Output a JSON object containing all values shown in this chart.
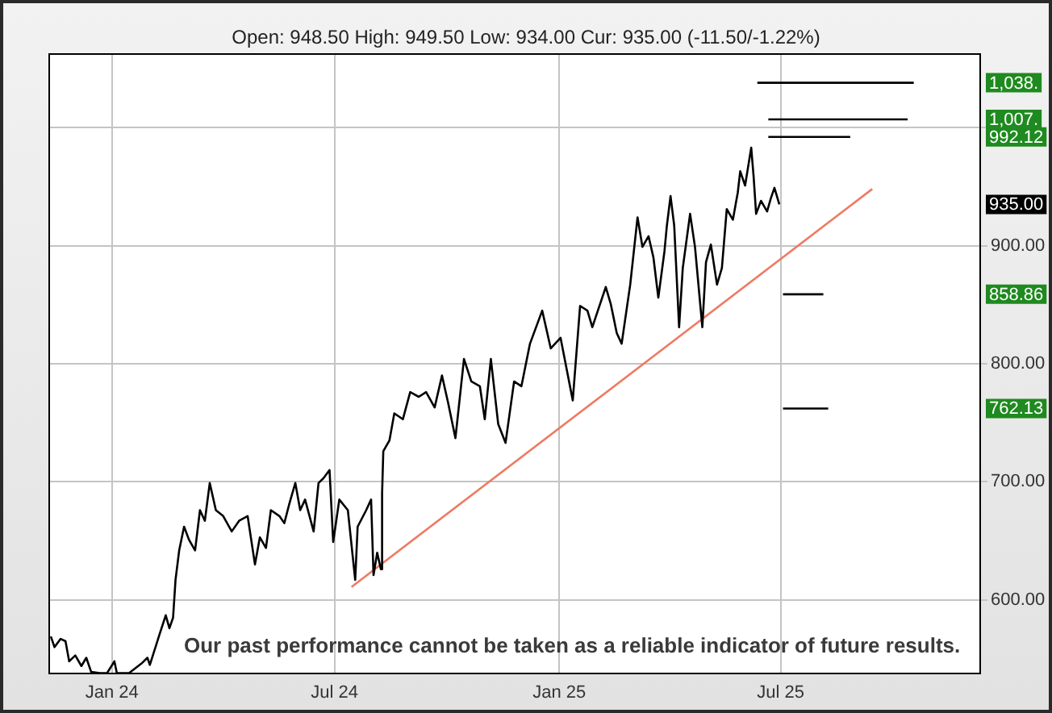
{
  "chart_data": {
    "type": "line",
    "subtitle": "Open: 948.50 High: 949.50 Low: 934.00 Cur: 935.00 (-11.50/-1.22%)",
    "series": [
      {
        "color": "#000000",
        "x": [
          "2023-11-12",
          "2023-11-15",
          "2023-11-20",
          "2023-11-24",
          "2023-11-27",
          "2023-12-02",
          "2023-12-07",
          "2023-12-11",
          "2023-12-15",
          "2023-12-22",
          "2023-12-28",
          "2024-01-03",
          "2024-01-05",
          "2024-01-15",
          "2024-01-25",
          "2024-01-30",
          "2024-02-01",
          "2024-02-09",
          "2024-02-14",
          "2024-02-17",
          "2024-02-20",
          "2024-02-22",
          "2024-02-25",
          "2024-02-29",
          "2024-03-04",
          "2024-03-09",
          "2024-03-13",
          "2024-03-17",
          "2024-03-21",
          "2024-03-26",
          "2024-04-01",
          "2024-04-08",
          "2024-04-14",
          "2024-04-21",
          "2024-04-27",
          "2024-05-01",
          "2024-05-06",
          "2024-05-10",
          "2024-05-17",
          "2024-05-21",
          "2024-05-25",
          "2024-05-30",
          "2024-06-03",
          "2024-06-07",
          "2024-06-14",
          "2024-06-18",
          "2024-06-22",
          "2024-06-27",
          "2024-06-30",
          "2024-07-05",
          "2024-07-12",
          "2024-07-18",
          "2024-07-20",
          "2024-07-27",
          "2024-07-31",
          "2024-08-02",
          "2024-08-05",
          "2024-08-08",
          "2024-08-09",
          "2024-08-10",
          "2024-08-15",
          "2024-08-19",
          "2024-08-26",
          "2024-09-01",
          "2024-09-08",
          "2024-09-14",
          "2024-09-21",
          "2024-09-27",
          "2024-10-02",
          "2024-10-08",
          "2024-10-15",
          "2024-10-21",
          "2024-10-28",
          "2024-11-01",
          "2024-11-06",
          "2024-11-12",
          "2024-11-18",
          "2024-11-25",
          "2024-12-01",
          "2024-12-08",
          "2024-12-18",
          "2024-12-25",
          "2025-01-02",
          "2025-01-12",
          "2025-01-18",
          "2025-01-24",
          "2025-01-28",
          "2025-02-08",
          "2025-02-12",
          "2025-02-17",
          "2025-02-21",
          "2025-02-28",
          "2025-03-06",
          "2025-03-10",
          "2025-03-15",
          "2025-03-19",
          "2025-03-23",
          "2025-03-28",
          "2025-03-30",
          "2025-04-02",
          "2025-04-05",
          "2025-04-09",
          "2025-04-12",
          "2025-04-18",
          "2025-04-22",
          "2025-04-28",
          "2025-05-01",
          "2025-05-05",
          "2025-05-10",
          "2025-05-14",
          "2025-05-18",
          "2025-05-23",
          "2025-05-27",
          "2025-05-29",
          "2025-06-02",
          "2025-06-07",
          "2025-06-09",
          "2025-06-11",
          "2025-06-15",
          "2025-06-20",
          "2025-06-23",
          "2025-06-26",
          "2025-06-30"
        ],
        "values": [
          569,
          560,
          567,
          565,
          548,
          553,
          544,
          551,
          539,
          538,
          538,
          548,
          538,
          538,
          546,
          551,
          545,
          571,
          587,
          576,
          585,
          617,
          642,
          662,
          651,
          642,
          676,
          667,
          699,
          676,
          671,
          658,
          667,
          671,
          630,
          653,
          644,
          676,
          671,
          665,
          681,
          699,
          676,
          685,
          658,
          699,
          703,
          710,
          649,
          685,
          676,
          617,
          662,
          676,
          685,
          621,
          640,
          626,
          690,
          726,
          735,
          758,
          753,
          776,
          772,
          776,
          763,
          790,
          767,
          737,
          804,
          785,
          781,
          753,
          804,
          749,
          733,
          785,
          781,
          817,
          845,
          813,
          822,
          769,
          849,
          845,
          831,
          865,
          851,
          826,
          817,
          867,
          924,
          899,
          908,
          890,
          856,
          895,
          917,
          942,
          917,
          831,
          881,
          927,
          899,
          831,
          886,
          901,
          867,
          881,
          931,
          922,
          945,
          963,
          951,
          983,
          958,
          927,
          938,
          929,
          940,
          949,
          935
        ]
      },
      {
        "type": "line",
        "color": "#ee7a62",
        "x": [
          "2024-07-15",
          "2025-09-14"
        ],
        "values": [
          611,
          948
        ]
      },
      {
        "name": "1,038.",
        "color": "#000000",
        "x": [
          "2025-06-12",
          "2025-10-18"
        ],
        "values": [
          1038,
          1038
        ]
      },
      {
        "name": "1,007.",
        "color": "#000000",
        "x": [
          "2025-06-21",
          "2025-10-13"
        ],
        "values": [
          1007,
          1007
        ]
      },
      {
        "name": "992.12",
        "color": "#000000",
        "x": [
          "2025-06-21",
          "2025-08-27"
        ],
        "values": [
          992.12,
          992.12
        ]
      },
      {
        "name": "858.86",
        "color": "#000000",
        "x": [
          "2025-07-03",
          "2025-08-05"
        ],
        "values": [
          858.86,
          858.86
        ]
      },
      {
        "name": "762.13",
        "color": "#000000",
        "x": [
          "2025-07-03",
          "2025-08-09"
        ],
        "values": [
          762.13,
          762.13
        ]
      }
    ],
    "xlim": [
      "2023-11-10",
      "2025-12-12"
    ],
    "xticks": [
      {
        "value": "2024-01-01",
        "label": "Jan 24"
      },
      {
        "value": "2024-07-01",
        "label": "Jul 24"
      },
      {
        "value": "2025-01-01",
        "label": "Jan 25"
      },
      {
        "value": "2025-07-01",
        "label": "Jul 25"
      }
    ],
    "ylim": [
      537,
      1063
    ],
    "yticks": [
      {
        "value": 600,
        "label": "600.00"
      },
      {
        "value": 700,
        "label": "700.00"
      },
      {
        "value": 800,
        "label": "800.00"
      },
      {
        "value": 900,
        "label": "900.00"
      },
      {
        "value": 1000,
        "label": null
      }
    ],
    "annotations": [
      "Our past performance cannot be taken as a reliable indicator of future results.",
      {
        "text": "935.00",
        "y": 935
      }
    ],
    "grid": true,
    "marker": "none",
    "line_style": "solid"
  }
}
